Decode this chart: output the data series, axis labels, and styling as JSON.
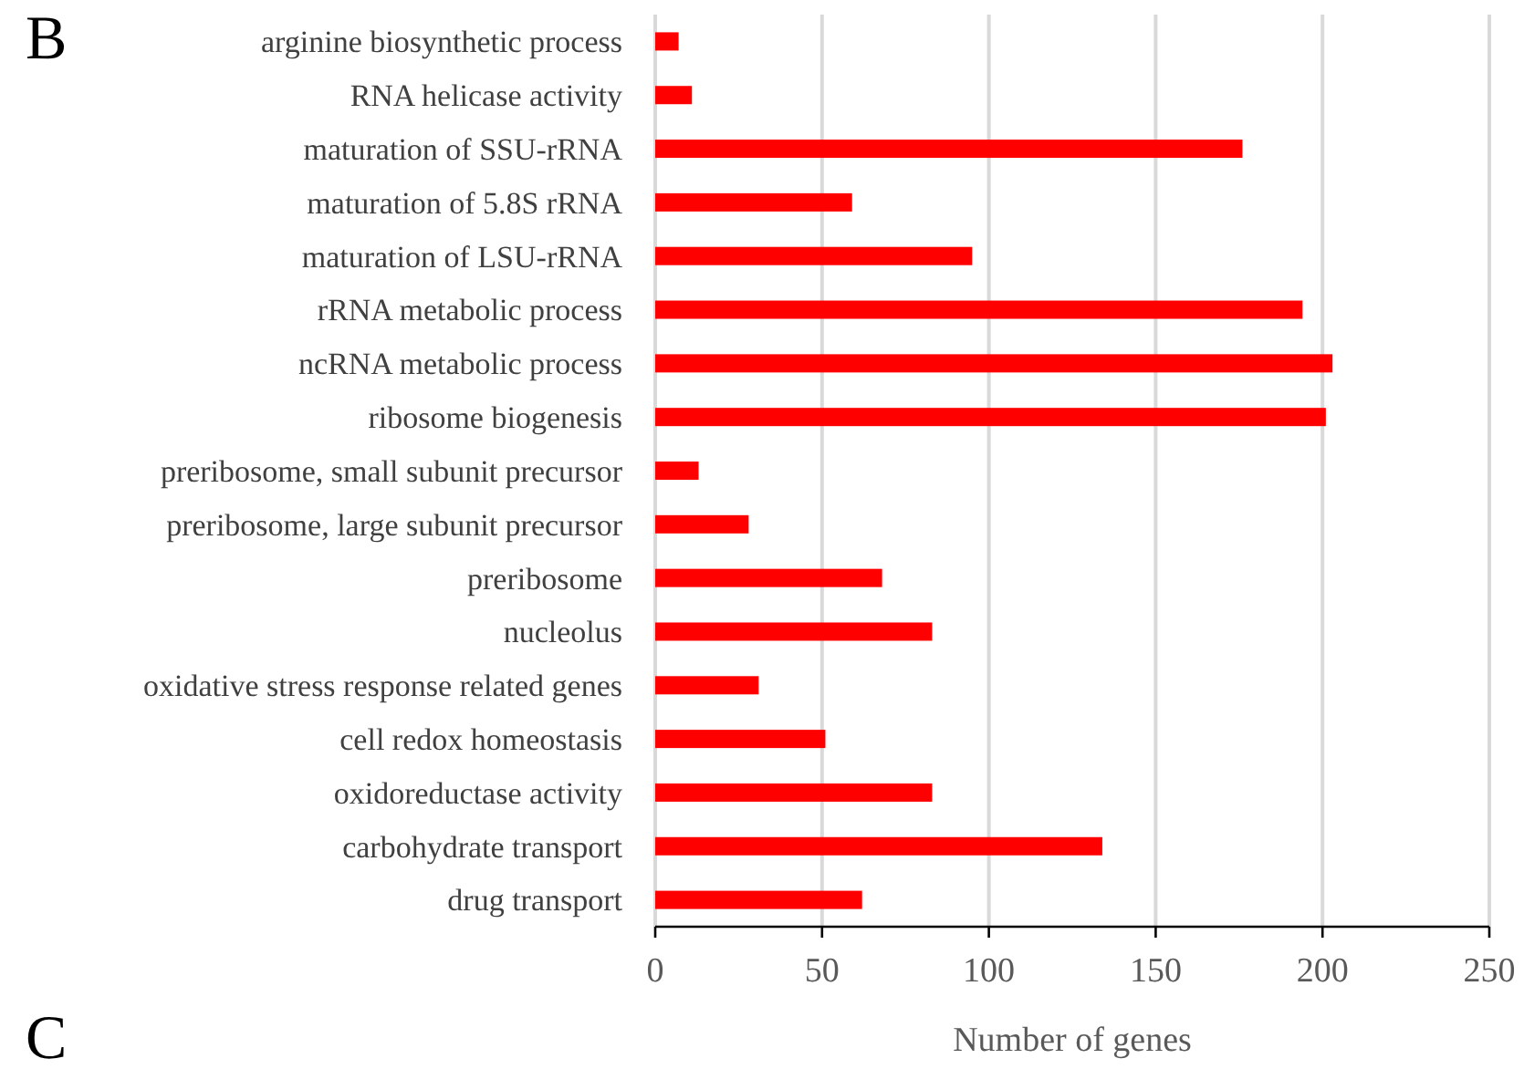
{
  "chart_data": {
    "type": "bar",
    "orientation": "horizontal",
    "xlabel": "Number of genes",
    "categories": [
      "arginine biosynthetic process",
      "RNA helicase activity",
      "maturation of SSU-rRNA",
      "maturation of 5.8S rRNA",
      "maturation of LSU-rRNA",
      "rRNA metabolic process",
      "ncRNA metabolic process",
      "ribosome biogenesis",
      "preribosome, small subunit precursor",
      "preribosome, large subunit precursor",
      "preribosome",
      "nucleolus",
      "oxidative stress response related genes",
      "cell redox homeostasis",
      "oxidoreductase activity",
      "carbohydrate transport",
      "drug transport"
    ],
    "values": [
      7,
      11,
      176,
      59,
      95,
      194,
      203,
      201,
      13,
      28,
      68,
      83,
      31,
      51,
      83,
      134,
      62
    ],
    "color": "#ff0000",
    "xlim": [
      0,
      250
    ],
    "xticks": [
      0,
      50,
      100,
      150,
      200,
      250
    ],
    "grid": "x",
    "annotations": [
      "B",
      "C"
    ]
  }
}
